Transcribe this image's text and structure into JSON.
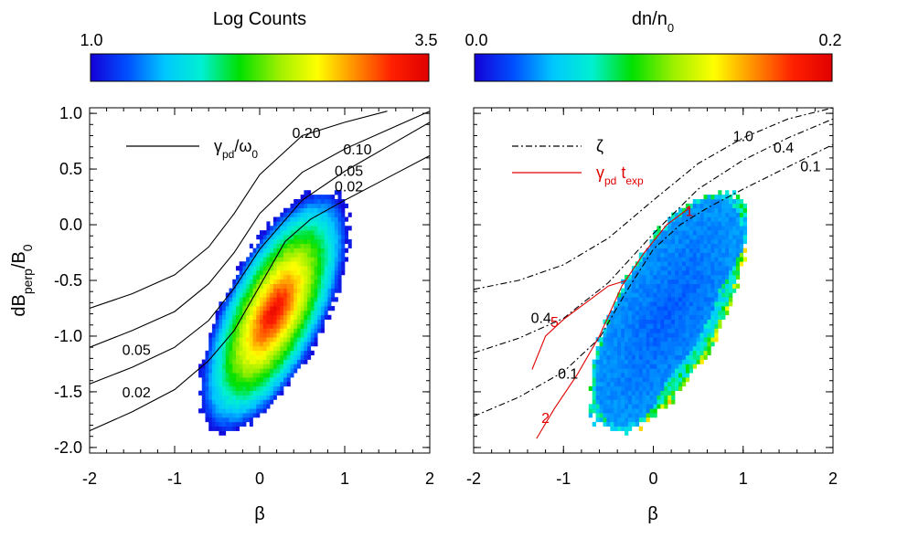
{
  "chart_data": [
    {
      "type": "heatmap",
      "panel": "left",
      "colorbar": {
        "title": "Log Counts",
        "min_label": "1.0",
        "max_label": "3.5",
        "range": [
          1.0,
          3.5
        ],
        "colors": [
          "#1400d8",
          "#0050ff",
          "#00c8ff",
          "#00f0d0",
          "#00e000",
          "#a0f000",
          "#ffff00",
          "#ff9000",
          "#ff2000",
          "#e00000"
        ]
      },
      "xlabel": "β",
      "ylabel": "dB",
      "ylabel_sub": "perp",
      "ylabel_tail": "/B",
      "ylabel_sub2": "0",
      "xlim": [
        -2,
        2
      ],
      "ylim": [
        -2.05,
        1.05
      ],
      "xticks": [
        "-2",
        "-1",
        "0",
        "1",
        "2"
      ],
      "xtick_values": [
        -2,
        -1,
        0,
        1,
        2
      ],
      "yticks": [
        "1.0",
        "0.5",
        "0.0",
        "-0.5",
        "-1.0",
        "-1.5",
        "-2.0"
      ],
      "ytick_values": [
        1.0,
        0.5,
        0.0,
        -0.5,
        -1.0,
        -1.5,
        -2.0
      ],
      "legend": {
        "label": "γ",
        "label_sub": "pd",
        "label_tail": "/ω",
        "label_sub2": "0",
        "style": "solid"
      },
      "distribution": {
        "center": [
          0.15,
          -0.8
        ],
        "peak_value": 3.5,
        "edge_value": 1.0
      },
      "contours": [
        {
          "label": "0.20",
          "style": "solid",
          "points": [
            [
              -2,
              -0.75
            ],
            [
              -1.5,
              -0.62
            ],
            [
              -1.0,
              -0.45
            ],
            [
              -0.6,
              -0.2
            ],
            [
              -0.3,
              0.1
            ],
            [
              0.0,
              0.45
            ],
            [
              0.5,
              0.8
            ],
            [
              1.0,
              0.92
            ],
            [
              1.5,
              1.02
            ]
          ]
        },
        {
          "label": "0.10",
          "style": "solid",
          "points": [
            [
              -2,
              -1.1
            ],
            [
              -1.5,
              -0.95
            ],
            [
              -1.0,
              -0.78
            ],
            [
              -0.6,
              -0.53
            ],
            [
              -0.3,
              -0.25
            ],
            [
              0.0,
              0.1
            ],
            [
              0.5,
              0.47
            ],
            [
              1.0,
              0.68
            ],
            [
              1.5,
              0.85
            ],
            [
              2.0,
              1.02
            ]
          ]
        },
        {
          "label": "0.05",
          "style": "solid",
          "points": [
            [
              -2,
              -1.43
            ],
            [
              -1.5,
              -1.28
            ],
            [
              -1.0,
              -1.1
            ],
            [
              -0.6,
              -0.86
            ],
            [
              -0.3,
              -0.57
            ],
            [
              0.0,
              -0.22
            ],
            [
              0.5,
              0.22
            ],
            [
              1.0,
              0.48
            ],
            [
              1.5,
              0.7
            ],
            [
              2.0,
              0.92
            ]
          ]
        },
        {
          "label": "0.02",
          "style": "solid",
          "points": [
            [
              -2,
              -1.85
            ],
            [
              -1.5,
              -1.68
            ],
            [
              -1.0,
              -1.48
            ],
            [
              -0.6,
              -1.22
            ],
            [
              -0.3,
              -0.95
            ],
            [
              0.0,
              -0.55
            ],
            [
              0.3,
              -0.15
            ],
            [
              0.6,
              0.05
            ],
            [
              1.0,
              0.22
            ],
            [
              1.5,
              0.42
            ],
            [
              2.0,
              0.62
            ]
          ]
        }
      ],
      "contour_labels": [
        {
          "text": "0.20",
          "x": 0.55,
          "y": 0.78
        },
        {
          "text": "0.10",
          "x": 1.15,
          "y": 0.63
        },
        {
          "text": "0.05",
          "x": 1.05,
          "y": 0.44
        },
        {
          "text": "0.02",
          "x": 1.05,
          "y": 0.3
        },
        {
          "text": "0.05",
          "x": -1.45,
          "y": -1.17
        },
        {
          "text": "0.02",
          "x": -1.45,
          "y": -1.55
        }
      ]
    },
    {
      "type": "heatmap",
      "panel": "right",
      "colorbar": {
        "title": "dn/n",
        "title_sub": "0",
        "min_label": "0.0",
        "max_label": "0.2",
        "range": [
          0.0,
          0.2
        ],
        "colors": [
          "#1400d8",
          "#0050ff",
          "#00c8ff",
          "#00f0d0",
          "#00e000",
          "#a0f000",
          "#ffff00",
          "#ff9000",
          "#ff2000",
          "#e00000"
        ]
      },
      "xlabel": "β",
      "xlim": [
        -2,
        2
      ],
      "ylim": [
        -2.05,
        1.05
      ],
      "xticks": [
        "-2",
        "-1",
        "0",
        "1",
        "2"
      ],
      "xtick_values": [
        -2,
        -1,
        0,
        1,
        2
      ],
      "legend": [
        {
          "label": "ζ",
          "style": "dashdot",
          "color": "#000000"
        },
        {
          "label": "γ",
          "label_sub": "pd",
          "label_mid": " t",
          "label_sub2": "exp",
          "style": "solid",
          "color": "#e00000"
        }
      ],
      "distribution": {
        "center": [
          0.15,
          -0.8
        ],
        "typical_value": 0.02,
        "edge_value": 0.08
      },
      "contours": [
        {
          "label": "1.0",
          "style": "dashdot",
          "points": [
            [
              -2,
              -0.58
            ],
            [
              -1.5,
              -0.5
            ],
            [
              -1.0,
              -0.36
            ],
            [
              -0.5,
              -0.12
            ],
            [
              0.0,
              0.22
            ],
            [
              0.5,
              0.55
            ],
            [
              1.0,
              0.78
            ],
            [
              1.5,
              0.95
            ],
            [
              2.0,
              1.05
            ]
          ]
        },
        {
          "label": "0.4",
          "style": "dashdot",
          "points": [
            [
              -2,
              -1.15
            ],
            [
              -1.5,
              -1.02
            ],
            [
              -1.0,
              -0.84
            ],
            [
              -0.5,
              -0.52
            ],
            [
              0.0,
              -0.08
            ],
            [
              0.5,
              0.32
            ],
            [
              1.0,
              0.58
            ],
            [
              1.5,
              0.78
            ],
            [
              2.0,
              0.95
            ]
          ]
        },
        {
          "label": "0.1",
          "style": "dashdot",
          "points": [
            [
              -2,
              -1.72
            ],
            [
              -1.5,
              -1.55
            ],
            [
              -1.0,
              -1.32
            ],
            [
              -0.6,
              -1.02
            ],
            [
              -0.3,
              -0.6
            ],
            [
              0.0,
              -0.22
            ],
            [
              0.3,
              0.0
            ],
            [
              0.6,
              0.15
            ],
            [
              1.0,
              0.32
            ],
            [
              1.5,
              0.52
            ],
            [
              2.0,
              0.72
            ]
          ]
        }
      ],
      "red_contours": [
        {
          "label": "1",
          "points": [
            [
              -1.3,
              -1.92
            ],
            [
              -1.1,
              -1.65
            ],
            [
              -0.85,
              -1.35
            ],
            [
              -0.6,
              -1.0
            ],
            [
              -0.35,
              -0.55
            ],
            [
              -0.1,
              -0.25
            ],
            [
              0.15,
              0.0
            ],
            [
              0.4,
              0.15
            ]
          ]
        },
        {
          "label": "5",
          "points": [
            [
              -1.35,
              -1.3
            ],
            [
              -1.2,
              -1.0
            ],
            [
              -1.0,
              -0.85
            ],
            [
              -0.75,
              -0.7
            ],
            [
              -0.5,
              -0.55
            ],
            [
              -0.3,
              -0.5
            ]
          ]
        }
      ],
      "contour_labels": [
        {
          "text": "1.0",
          "x": 1.0,
          "y": 0.75
        },
        {
          "text": "0.4",
          "x": 1.45,
          "y": 0.65
        },
        {
          "text": "0.1",
          "x": 1.75,
          "y": 0.48
        },
        {
          "text": "0.4",
          "x": -1.25,
          "y": -0.88
        },
        {
          "text": "0.1",
          "x": -0.95,
          "y": -1.38
        },
        {
          "text": "5",
          "x": -1.1,
          "y": -0.92,
          "color": "#e00000"
        },
        {
          "text": "1",
          "x": 0.4,
          "y": 0.08,
          "color": "#e00000"
        },
        {
          "text": "2",
          "x": -1.2,
          "y": -1.78,
          "color": "#e00000"
        }
      ]
    }
  ]
}
